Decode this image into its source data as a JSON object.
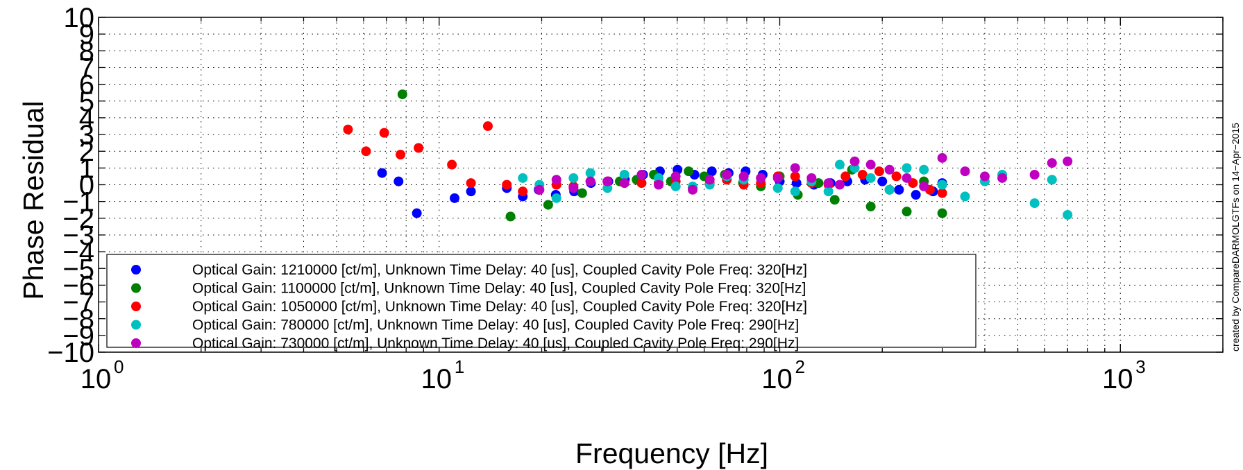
{
  "chart_data": {
    "type": "scatter",
    "title": "",
    "xlabel": "Frequency [Hz]",
    "ylabel": "Phase Residual",
    "xscale": "log",
    "xlim": [
      1,
      2000
    ],
    "ylim": [
      -10,
      10
    ],
    "yticks": [
      -10,
      -9,
      -8,
      -7,
      -6,
      -5,
      -4,
      -3,
      -2,
      -1,
      0,
      1,
      2,
      3,
      4,
      5,
      6,
      7,
      8,
      9,
      10
    ],
    "ytick_labels": [
      "−10",
      "−9",
      "−8",
      "−7",
      "−6",
      "−5",
      "−4",
      "−3",
      "−2",
      "−1",
      "0",
      "1",
      "2",
      "3",
      "4",
      "5",
      "6",
      "7",
      "8",
      "9",
      "10"
    ],
    "xticks": [
      {
        "base": "10",
        "exp": "0",
        "value": 1
      },
      {
        "base": "10",
        "exp": "1",
        "value": 10
      },
      {
        "base": "10",
        "exp": "2",
        "value": 100
      },
      {
        "base": "10",
        "exp": "3",
        "value": 1000
      }
    ],
    "grid": true,
    "legend_position": "lower-left",
    "side_note": "created by CompareDARMOLGTFs on 14−Apr−2015",
    "series": [
      {
        "name": "Optical Gain: 1210000 [ct/m], Unknown Time Delay: 40 [us], Coupled Cavity Pole Freq: 320[Hz]",
        "color": "#0000ff",
        "x": [
          6.8,
          7.6,
          8.6,
          11.1,
          12.4,
          15.8,
          17.6,
          19.6,
          22.0,
          24.9,
          27.9,
          31.4,
          35.1,
          39.7,
          44.5,
          50.1,
          56.2,
          63.2,
          70.8,
          79.4,
          89.1,
          100,
          112,
          126,
          141,
          158,
          178,
          200,
          224,
          251,
          282,
          300
        ],
        "y": [
          0.7,
          0.2,
          -1.7,
          -0.8,
          -0.4,
          -0.2,
          -0.7,
          -0.3,
          -0.6,
          -0.4,
          0.1,
          0.2,
          0.3,
          0.6,
          0.8,
          0.9,
          0.6,
          0.8,
          0.7,
          0.8,
          0.6,
          0.2,
          0.1,
          0.0,
          0.1,
          0.2,
          0.3,
          0.2,
          -0.3,
          -0.6,
          -0.4,
          0.1
        ]
      },
      {
        "name": "Optical Gain: 1100000 [ct/m], Unknown Time Delay: 40 [us], Coupled Cavity Pole Freq: 320[Hz]",
        "color": "#008000",
        "x": [
          7.8,
          16.2,
          20.9,
          26.3,
          33.9,
          38.0,
          42.7,
          47.9,
          54.0,
          60.0,
          69.0,
          78.0,
          88.0,
          100,
          113,
          130,
          145,
          163,
          185,
          210,
          236,
          265,
          300
        ],
        "y": [
          5.4,
          -1.9,
          -1.2,
          -0.5,
          0.2,
          0.3,
          0.6,
          0.2,
          0.8,
          0.5,
          0.6,
          0.1,
          -0.1,
          0.5,
          -0.6,
          0.1,
          -0.9,
          0.9,
          -1.3,
          -0.3,
          -1.6,
          0.2,
          -1.7
        ]
      },
      {
        "name": "Optical Gain: 1050000 [ct/m], Unknown Time Delay: 40 [us], Coupled Cavity Pole Freq: 320[Hz]",
        "color": "#ff0000",
        "x": [
          5.4,
          6.1,
          6.9,
          7.7,
          8.7,
          10.9,
          12.4,
          13.9,
          15.8,
          17.6,
          19.7,
          22.1,
          24.8,
          27.8,
          31.2,
          35.0,
          39.3,
          44.1,
          49.5,
          55.5,
          62.3,
          69.9,
          78.4,
          88.0,
          98.7,
          111,
          124,
          139,
          156,
          175,
          196,
          220,
          246,
          276,
          300
        ],
        "y": [
          3.3,
          2.0,
          3.1,
          1.8,
          2.2,
          1.2,
          0.1,
          3.5,
          0.0,
          -0.4,
          -0.3,
          0.0,
          -0.1,
          0.2,
          0.2,
          0.1,
          0.1,
          0.1,
          0.2,
          -0.2,
          0.1,
          0.3,
          0.0,
          0.1,
          0.5,
          0.5,
          0.1,
          0.0,
          0.5,
          0.6,
          0.8,
          0.5,
          0.1,
          -0.3,
          -0.5
        ]
      },
      {
        "name": "Optical Gain: 780000 [ct/m], Unknown Time Delay: 40 [us], Coupled Cavity Pole Freq: 290[Hz]",
        "color": "#00c0c0",
        "x": [
          17.6,
          19.7,
          22.1,
          24.8,
          27.8,
          31.2,
          35.0,
          39.3,
          44.1,
          49.5,
          55.5,
          62.3,
          69.9,
          78.4,
          88.0,
          98.7,
          111,
          124,
          139,
          150,
          166,
          185,
          210,
          236,
          265,
          300,
          350,
          400,
          450,
          560,
          630,
          700
        ],
        "y": [
          0.4,
          0.0,
          -0.8,
          0.4,
          0.7,
          -0.2,
          0.6,
          0.6,
          0.4,
          -0.1,
          -0.1,
          0.0,
          0.5,
          0.3,
          0.4,
          -0.2,
          -0.4,
          0.2,
          -0.4,
          1.2,
          1.0,
          0.4,
          -0.3,
          1.0,
          0.9,
          0.0,
          -0.7,
          0.2,
          0.6,
          -1.1,
          0.3,
          -1.8
        ]
      },
      {
        "name": "Optical Gain: 730000 [ct/m], Unknown Time Delay: 40 [us], Coupled Cavity Pole Freq: 290[Hz]",
        "color": "#c000c0",
        "x": [
          19.7,
          22.1,
          24.8,
          27.8,
          31.2,
          35.0,
          39.3,
          44.1,
          49.5,
          55.5,
          62.3,
          69.9,
          78.4,
          88.0,
          98.7,
          111,
          124,
          139,
          150,
          166,
          185,
          210,
          236,
          265,
          300,
          350,
          400,
          450,
          560,
          630,
          700
        ],
        "y": [
          -0.3,
          0.3,
          -0.2,
          0.2,
          0.2,
          0.1,
          0.6,
          0.0,
          0.5,
          -0.3,
          0.3,
          0.6,
          0.5,
          0.4,
          0.4,
          1.0,
          0.4,
          0.1,
          0.0,
          1.4,
          1.2,
          0.9,
          0.4,
          -0.1,
          1.6,
          0.8,
          0.5,
          0.4,
          0.6,
          1.3,
          1.4
        ]
      }
    ]
  }
}
